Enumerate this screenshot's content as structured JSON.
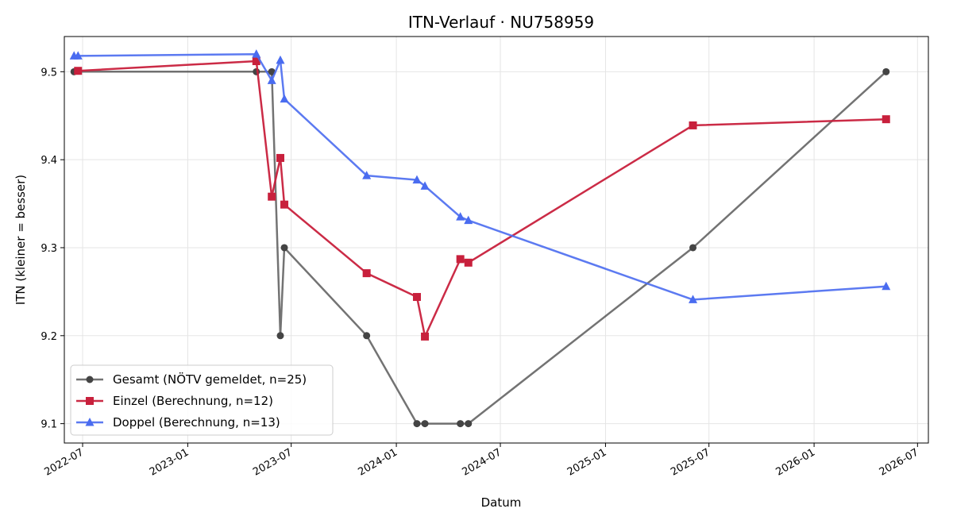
{
  "chart_data": {
    "type": "line",
    "title": "ITN-Verlauf · NU758959",
    "xlabel": "Datum",
    "ylabel": "ITN  (kleiner = besser)",
    "x_type": "date",
    "xlim": [
      "2022-05-30",
      "2026-07-20"
    ],
    "ylim": [
      9.078,
      9.54
    ],
    "grid": true,
    "legend_position": "lower-left",
    "x_ticks": [
      {
        "date": "2022-07-01",
        "label": "2022-07"
      },
      {
        "date": "2023-01-01",
        "label": "2023-01"
      },
      {
        "date": "2023-07-01",
        "label": "2023-07"
      },
      {
        "date": "2024-01-01",
        "label": "2024-01"
      },
      {
        "date": "2024-07-01",
        "label": "2024-07"
      },
      {
        "date": "2025-01-01",
        "label": "2025-01"
      },
      {
        "date": "2025-07-01",
        "label": "2025-07"
      },
      {
        "date": "2026-01-01",
        "label": "2026-01"
      },
      {
        "date": "2026-07-01",
        "label": "2026-07"
      }
    ],
    "y_ticks": [
      {
        "value": 9.1,
        "label": "9.1"
      },
      {
        "value": 9.2,
        "label": "9.2"
      },
      {
        "value": 9.3,
        "label": "9.3"
      },
      {
        "value": 9.4,
        "label": "9.4"
      },
      {
        "value": 9.5,
        "label": "9.5"
      }
    ],
    "series": [
      {
        "name": "Gesamt (NÖTV gemeldet, n=25)",
        "color": "#444444",
        "marker": "circle",
        "points": [
          {
            "x": "2022-06-16",
            "y": 9.5
          },
          {
            "x": "2023-05-01",
            "y": 9.5
          },
          {
            "x": "2023-05-28",
            "y": 9.5
          },
          {
            "x": "2023-06-12",
            "y": 9.2
          },
          {
            "x": "2023-06-19",
            "y": 9.3
          },
          {
            "x": "2023-11-10",
            "y": 9.2
          },
          {
            "x": "2024-02-06",
            "y": 9.1
          },
          {
            "x": "2024-02-20",
            "y": 9.1
          },
          {
            "x": "2024-04-22",
            "y": 9.1
          },
          {
            "x": "2024-05-06",
            "y": 9.1
          },
          {
            "x": "2025-06-03",
            "y": 9.3
          },
          {
            "x": "2026-05-07",
            "y": 9.5
          }
        ]
      },
      {
        "name": "Einzel (Berechnung, n=12)",
        "color": "#c8203c",
        "marker": "square",
        "points": [
          {
            "x": "2022-06-23",
            "y": 9.501
          },
          {
            "x": "2023-05-01",
            "y": 9.512
          },
          {
            "x": "2023-05-28",
            "y": 9.358
          },
          {
            "x": "2023-06-12",
            "y": 9.402
          },
          {
            "x": "2023-06-19",
            "y": 9.349
          },
          {
            "x": "2023-11-10",
            "y": 9.271
          },
          {
            "x": "2024-02-06",
            "y": 9.244
          },
          {
            "x": "2024-02-20",
            "y": 9.199
          },
          {
            "x": "2024-04-22",
            "y": 9.287
          },
          {
            "x": "2024-05-06",
            "y": 9.283
          },
          {
            "x": "2025-06-03",
            "y": 9.439
          },
          {
            "x": "2026-05-07",
            "y": 9.446
          }
        ]
      },
      {
        "name": "Doppel (Berechnung, n=13)",
        "color": "#4a6cf0",
        "marker": "triangle",
        "points": [
          {
            "x": "2022-06-16",
            "y": 9.518
          },
          {
            "x": "2022-06-23",
            "y": 9.518
          },
          {
            "x": "2023-05-01",
            "y": 9.52
          },
          {
            "x": "2023-05-28",
            "y": 9.49
          },
          {
            "x": "2023-06-12",
            "y": 9.513
          },
          {
            "x": "2023-06-19",
            "y": 9.469
          },
          {
            "x": "2023-11-10",
            "y": 9.382
          },
          {
            "x": "2024-02-06",
            "y": 9.377
          },
          {
            "x": "2024-02-20",
            "y": 9.37
          },
          {
            "x": "2024-04-22",
            "y": 9.335
          },
          {
            "x": "2024-05-06",
            "y": 9.331
          },
          {
            "x": "2025-06-03",
            "y": 9.241
          },
          {
            "x": "2026-05-07",
            "y": 9.256
          }
        ]
      }
    ]
  }
}
